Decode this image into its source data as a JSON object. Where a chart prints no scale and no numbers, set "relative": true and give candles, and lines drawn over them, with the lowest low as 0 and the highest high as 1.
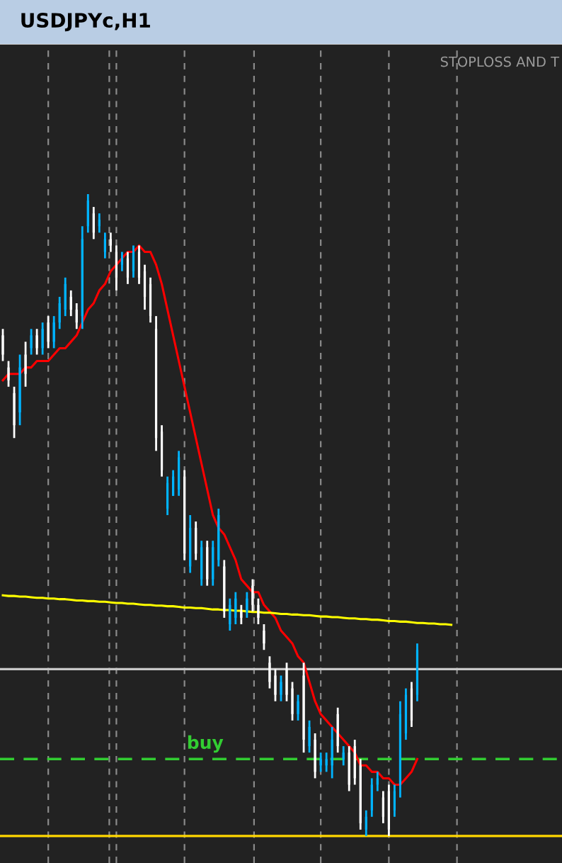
{
  "chart_data": {
    "type": "candlestick",
    "title": "USDJPYc,H1",
    "relative": true,
    "grid": "x",
    "annotations": [
      "STOPLOSS AND T"
    ],
    "categories": [
      null,
      null,
      null,
      null,
      null,
      null,
      null,
      null,
      null,
      null,
      null,
      null,
      null,
      null,
      null,
      null,
      null,
      null,
      null,
      null,
      null,
      null,
      null,
      null,
      null,
      null,
      null,
      null,
      null,
      null,
      null,
      null,
      null,
      null,
      null,
      null,
      null,
      null,
      null,
      null,
      null,
      null,
      null,
      null,
      null,
      null,
      null,
      null,
      null,
      null,
      null,
      null,
      null,
      null,
      null,
      null,
      null,
      null,
      null,
      null,
      null,
      null,
      null,
      null,
      null,
      null,
      null,
      null,
      null,
      null,
      null,
      null,
      null,
      null,
      null,
      null,
      null,
      null,
      null,
      null,
      null,
      null,
      null,
      null,
      null,
      null,
      null,
      null,
      null,
      null,
      null,
      null,
      null,
      null,
      null,
      null,
      null,
      null,
      null
    ],
    "ohlc": [
      [
        0.78,
        0.79,
        0.74,
        0.75
      ],
      [
        0.73,
        0.74,
        0.7,
        0.71
      ],
      [
        0.69,
        0.7,
        0.62,
        0.64
      ],
      [
        0.66,
        0.75,
        0.64,
        0.73
      ],
      [
        0.75,
        0.77,
        0.7,
        0.72
      ],
      [
        0.76,
        0.79,
        0.75,
        0.78
      ],
      [
        0.78,
        0.79,
        0.75,
        0.76
      ],
      [
        0.76,
        0.8,
        0.75,
        0.79
      ],
      [
        0.8,
        0.81,
        0.76,
        0.77
      ],
      [
        0.77,
        0.81,
        0.76,
        0.8
      ],
      [
        0.8,
        0.84,
        0.79,
        0.83
      ],
      [
        0.82,
        0.87,
        0.81,
        0.86
      ],
      [
        0.84,
        0.85,
        0.81,
        0.82
      ],
      [
        0.82,
        0.83,
        0.79,
        0.8
      ],
      [
        0.81,
        0.95,
        0.79,
        0.93
      ],
      [
        0.95,
        1.0,
        0.94,
        0.99
      ],
      [
        0.97,
        0.98,
        0.93,
        0.94
      ],
      [
        0.95,
        0.97,
        0.94,
        0.96
      ],
      [
        0.91,
        0.94,
        0.9,
        0.93
      ],
      [
        0.93,
        0.94,
        0.91,
        0.92
      ],
      [
        0.91,
        0.92,
        0.85,
        0.87
      ],
      [
        0.89,
        0.91,
        0.88,
        0.9
      ],
      [
        0.9,
        0.91,
        0.86,
        0.87
      ],
      [
        0.88,
        0.92,
        0.87,
        0.91
      ],
      [
        0.91,
        0.92,
        0.86,
        0.87
      ],
      [
        0.88,
        0.89,
        0.82,
        0.84
      ],
      [
        0.86,
        0.87,
        0.8,
        0.81
      ],
      [
        0.79,
        0.81,
        0.6,
        0.62
      ],
      [
        0.63,
        0.64,
        0.56,
        0.57
      ],
      [
        0.51,
        0.56,
        0.5,
        0.55
      ],
      [
        0.53,
        0.57,
        0.53,
        0.56
      ],
      [
        0.54,
        0.6,
        0.53,
        0.59
      ],
      [
        0.56,
        0.57,
        0.43,
        0.44
      ],
      [
        0.42,
        0.5,
        0.41,
        0.48
      ],
      [
        0.48,
        0.49,
        0.43,
        0.44
      ],
      [
        0.4,
        0.46,
        0.39,
        0.45
      ],
      [
        0.45,
        0.46,
        0.39,
        0.4
      ],
      [
        0.4,
        0.46,
        0.39,
        0.45
      ],
      [
        0.43,
        0.51,
        0.42,
        0.5
      ],
      [
        0.42,
        0.43,
        0.34,
        0.35
      ],
      [
        0.33,
        0.37,
        0.32,
        0.36
      ],
      [
        0.34,
        0.38,
        0.33,
        0.37
      ],
      [
        0.35,
        0.36,
        0.33,
        0.34
      ],
      [
        0.35,
        0.38,
        0.34,
        0.37
      ],
      [
        0.39,
        0.4,
        0.35,
        0.36
      ],
      [
        0.36,
        0.37,
        0.33,
        0.34
      ],
      [
        0.32,
        0.33,
        0.29,
        0.3
      ],
      [
        0.27,
        0.28,
        0.23,
        0.24
      ],
      [
        0.25,
        0.26,
        0.21,
        0.22
      ],
      [
        0.22,
        0.25,
        0.21,
        0.24
      ],
      [
        0.26,
        0.27,
        0.21,
        0.22
      ],
      [
        0.23,
        0.24,
        0.18,
        0.19
      ],
      [
        0.19,
        0.22,
        0.18,
        0.21
      ],
      [
        0.25,
        0.27,
        0.13,
        0.15
      ],
      [
        0.14,
        0.18,
        0.13,
        0.17
      ],
      [
        0.15,
        0.16,
        0.09,
        0.1
      ],
      [
        0.11,
        0.13,
        0.1,
        0.12
      ],
      [
        0.11,
        0.13,
        0.1,
        0.12
      ],
      [
        0.11,
        0.17,
        0.09,
        0.15
      ],
      [
        0.19,
        0.2,
        0.13,
        0.14
      ],
      [
        0.12,
        0.14,
        0.11,
        0.13
      ],
      [
        0.13,
        0.14,
        0.07,
        0.08
      ],
      [
        0.14,
        0.15,
        0.08,
        0.09
      ],
      [
        0.11,
        0.12,
        0.01,
        0.02
      ],
      [
        0.01,
        0.04,
        0.0,
        0.03
      ],
      [
        0.04,
        0.09,
        0.03,
        0.08
      ],
      [
        0.08,
        0.1,
        0.07,
        0.09
      ],
      [
        0.06,
        0.07,
        0.02,
        0.03
      ],
      [
        0.07,
        0.08,
        0.0,
        0.01
      ],
      [
        0.04,
        0.08,
        0.03,
        0.07
      ],
      [
        0.08,
        0.21,
        0.06,
        0.19
      ],
      [
        0.16,
        0.23,
        0.15,
        0.22
      ],
      [
        0.23,
        0.24,
        0.17,
        0.18
      ],
      [
        0.22,
        0.3,
        0.21,
        0.29
      ],
      null,
      null,
      null,
      null,
      null,
      null,
      null,
      null,
      null,
      null,
      null,
      null,
      null,
      null,
      null,
      null,
      null,
      null,
      null,
      null,
      null,
      null,
      null,
      null,
      null
    ],
    "colors": [
      "#ffffff",
      "#ffffff",
      "#ffffff",
      "#00b4ff",
      "#ffffff",
      "#00b4ff",
      "#ffffff",
      "#00b4ff",
      "#ffffff",
      "#00b4ff",
      "#00b4ff",
      "#00b4ff",
      "#ffffff",
      "#ffffff",
      "#00b4ff",
      "#00b4ff",
      "#ffffff",
      "#00b4ff",
      "#00b4ff",
      "#ffffff",
      "#ffffff",
      "#00b4ff",
      "#ffffff",
      "#00b4ff",
      "#ffffff",
      "#ffffff",
      "#ffffff",
      "#ffffff",
      "#ffffff",
      "#00b4ff",
      "#00b4ff",
      "#00b4ff",
      "#ffffff",
      "#00b4ff",
      "#ffffff",
      "#00b4ff",
      "#ffffff",
      "#00b4ff",
      "#00b4ff",
      "#ffffff",
      "#00b4ff",
      "#00b4ff",
      "#ffffff",
      "#00b4ff",
      "#ffffff",
      "#ffffff",
      "#ffffff",
      "#ffffff",
      "#ffffff",
      "#00b4ff",
      "#ffffff",
      "#ffffff",
      "#00b4ff",
      "#ffffff",
      "#00b4ff",
      "#ffffff",
      "#00b4ff",
      "#00b4ff",
      "#00b4ff",
      "#ffffff",
      "#00b4ff",
      "#ffffff",
      "#ffffff",
      "#ffffff",
      "#00b4ff",
      "#00b4ff",
      "#00b4ff",
      "#ffffff",
      "#ffffff",
      "#00b4ff",
      "#00b4ff",
      "#00b4ff",
      "#ffffff",
      "#00b4ff",
      null,
      null,
      null,
      null,
      null,
      null,
      null,
      null,
      null,
      null,
      null,
      null,
      null,
      null,
      null,
      null,
      null,
      null,
      null,
      null,
      null,
      null,
      null,
      null,
      null
    ],
    "series": [
      {
        "type": "line",
        "color": "#ff0000",
        "values": [
          0.71,
          0.72,
          0.72,
          0.72,
          0.73,
          0.73,
          0.74,
          0.74,
          0.74,
          0.75,
          0.76,
          0.76,
          0.77,
          0.78,
          0.8,
          0.82,
          0.83,
          0.85,
          0.86,
          0.88,
          0.89,
          0.9,
          0.91,
          0.91,
          0.92,
          0.91,
          0.91,
          0.89,
          0.86,
          0.82,
          0.78,
          0.74,
          0.7,
          0.66,
          0.62,
          0.58,
          0.54,
          0.5,
          0.48,
          0.47,
          0.45,
          0.43,
          0.4,
          0.39,
          0.38,
          0.38,
          0.36,
          0.35,
          0.34,
          0.32,
          0.31,
          0.3,
          0.28,
          0.27,
          0.24,
          0.21,
          0.19,
          0.18,
          0.17,
          0.16,
          0.15,
          0.14,
          0.13,
          0.11,
          0.11,
          0.1,
          0.1,
          0.09,
          0.09,
          0.08,
          0.08,
          0.09,
          0.1,
          0.12,
          null,
          null,
          null,
          null,
          null,
          null,
          null,
          null,
          null,
          null,
          null,
          null,
          null,
          null,
          null,
          null,
          null,
          null,
          null,
          null,
          null,
          null,
          null,
          null,
          null
        ]
      },
      {
        "type": "line",
        "color": "#ffff00",
        "values": [
          0.375,
          0.374,
          0.374,
          0.373,
          0.373,
          0.372,
          0.371,
          0.371,
          0.37,
          0.37,
          0.369,
          0.369,
          0.368,
          0.367,
          0.367,
          0.366,
          0.366,
          0.365,
          0.365,
          0.364,
          0.363,
          0.363,
          0.362,
          0.362,
          0.361,
          0.36,
          0.36,
          0.359,
          0.359,
          0.358,
          0.358,
          0.357,
          0.356,
          0.356,
          0.355,
          0.355,
          0.354,
          0.353,
          0.353,
          0.352,
          0.352,
          0.351,
          0.351,
          0.35,
          0.349,
          0.349,
          0.348,
          0.348,
          0.347,
          0.346,
          0.346,
          0.345,
          0.345,
          0.344,
          0.344,
          0.343,
          0.342,
          0.342,
          0.341,
          0.341,
          0.34,
          0.339,
          0.339,
          0.338,
          0.338,
          0.337,
          0.337,
          0.336,
          0.335,
          0.335,
          0.334,
          0.334,
          0.333,
          0.332,
          0.332,
          0.331,
          0.331,
          0.33,
          0.33,
          0.329,
          null,
          null,
          null,
          null,
          null,
          null,
          null,
          null,
          null,
          null,
          null,
          null,
          null,
          null,
          null,
          null,
          null,
          null,
          null
        ]
      }
    ],
    "ref_lines": [
      {
        "axis": "y",
        "value": 0.26,
        "color": "#c8c8c8",
        "line_style": "solid"
      },
      {
        "axis": "y",
        "value": 0.12,
        "color": "#32cd32",
        "line_style": "dashed",
        "label": "buy"
      },
      {
        "axis": "y",
        "value": 0.0,
        "color": "#ffd700",
        "line_style": "solid"
      }
    ]
  }
}
